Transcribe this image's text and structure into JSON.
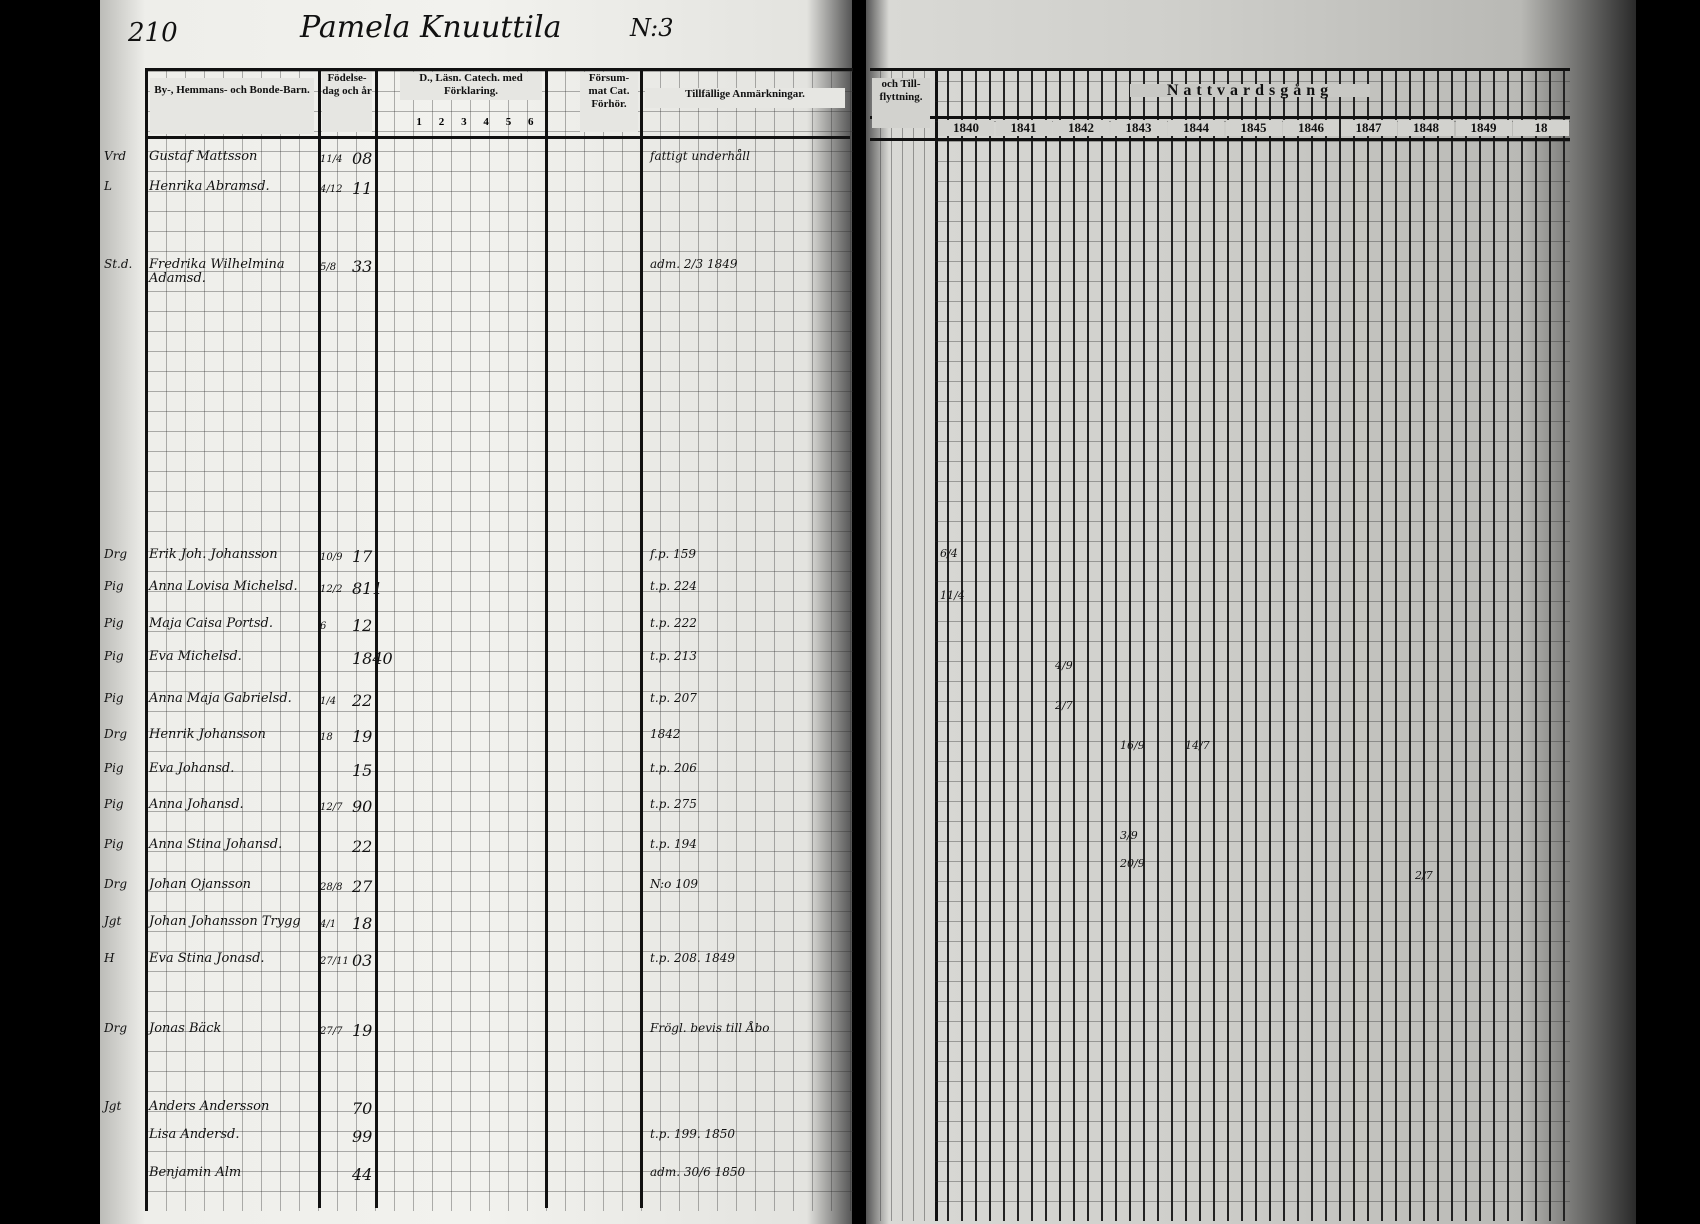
{
  "page_number": "210",
  "title": "Pamela Knuuttila",
  "title_number": "N:3",
  "left_headers": {
    "name": "By-, Hemmans- och Bonde-Barn.",
    "birth": "Födelse-dag och år",
    "catechism": "D., Läsn. Catech. med Förklaring.",
    "catechism_numbers": [
      "1",
      "2",
      "3",
      "4",
      "5",
      "6"
    ],
    "missed": "Försum-mat Cat. Förhör.",
    "remarks": "Tillfällige Anmärkningar."
  },
  "right_headers": {
    "moving": "och Till-flyttning.",
    "communion": "Nattvardsgång",
    "years": [
      "1840",
      "1841",
      "1842",
      "1843",
      "1844",
      "1845",
      "1846",
      "1847",
      "1848",
      "1849",
      "18"
    ]
  },
  "entries": [
    {
      "prefix": "Vrd",
      "name": "Gustaf Mattsson",
      "birth": "11/4",
      "year": "08",
      "note": "fattigt underhåll"
    },
    {
      "prefix": "L",
      "name": "Henrika Abramsd.",
      "birth": "4/12",
      "year": "11",
      "note": ""
    },
    {
      "prefix": "St.d.",
      "name": "Fredrika Wilhelmina Adamsd.",
      "birth": "5/8",
      "year": "33",
      "note": "adm. 2/3 1849"
    },
    {
      "prefix": "Drg",
      "name": "Erik Joh. Johansson",
      "birth": "10/9",
      "year": "17",
      "note": "f.p. 159"
    },
    {
      "prefix": "Pig",
      "name": "Anna Lovisa Michelsd.",
      "birth": "12/2",
      "year": "811",
      "note": "t.p. 224"
    },
    {
      "prefix": "Pig",
      "name": "Maja Caisa Portsd.",
      "birth": "6",
      "year": "12",
      "note": "t.p. 222"
    },
    {
      "prefix": "Pig",
      "name": "Eva Michelsd.",
      "birth": "",
      "year": "1840",
      "note": "t.p. 213"
    },
    {
      "prefix": "Pig",
      "name": "Anna Maja Gabrielsd.",
      "birth": "1/4",
      "year": "22",
      "note": "t.p. 207"
    },
    {
      "prefix": "Drg",
      "name": "Henrik Johansson",
      "birth": "18",
      "year": "19",
      "note": "1842"
    },
    {
      "prefix": "Pig",
      "name": "Eva Johansd.",
      "birth": "",
      "year": "15",
      "note": "t.p. 206"
    },
    {
      "prefix": "Pig",
      "name": "Anna Johansd.",
      "birth": "12/7",
      "year": "90",
      "note": "t.p. 275"
    },
    {
      "prefix": "Pig",
      "name": "Anna Stina Johansd.",
      "birth": "",
      "year": "22",
      "note": "t.p. 194"
    },
    {
      "prefix": "Drg",
      "name": "Johan Ojansson",
      "birth": "28/8",
      "year": "27",
      "note": "N:o 109"
    },
    {
      "prefix": "Jgt",
      "name": "Johan Johansson Trygg",
      "birth": "4/1",
      "year": "18",
      "note": ""
    },
    {
      "prefix": "H",
      "name": "Eva Stina Jonasd.",
      "birth": "27/11",
      "year": "03",
      "note": "t.p. 208. 1849"
    },
    {
      "prefix": "Drg",
      "name": "Jonas Bäck",
      "birth": "27/7",
      "year": "19",
      "note": "Frögl. bevis till Åbo"
    },
    {
      "prefix": "Jgt",
      "name": "Anders Andersson",
      "birth": "",
      "year": "70",
      "note": ""
    },
    {
      "prefix": "",
      "name": "Lisa Andersd.",
      "birth": "",
      "year": "99",
      "note": "t.p. 199. 1850"
    },
    {
      "prefix": "",
      "name": "Benjamin Alm",
      "birth": "",
      "year": "44",
      "note": "adm. 30/6 1850"
    }
  ],
  "communion_marks": [
    "6/4",
    "11/4",
    "4/9",
    "2/7",
    "16/9",
    "14/7",
    "3/9",
    "20/9",
    "2/7"
  ]
}
